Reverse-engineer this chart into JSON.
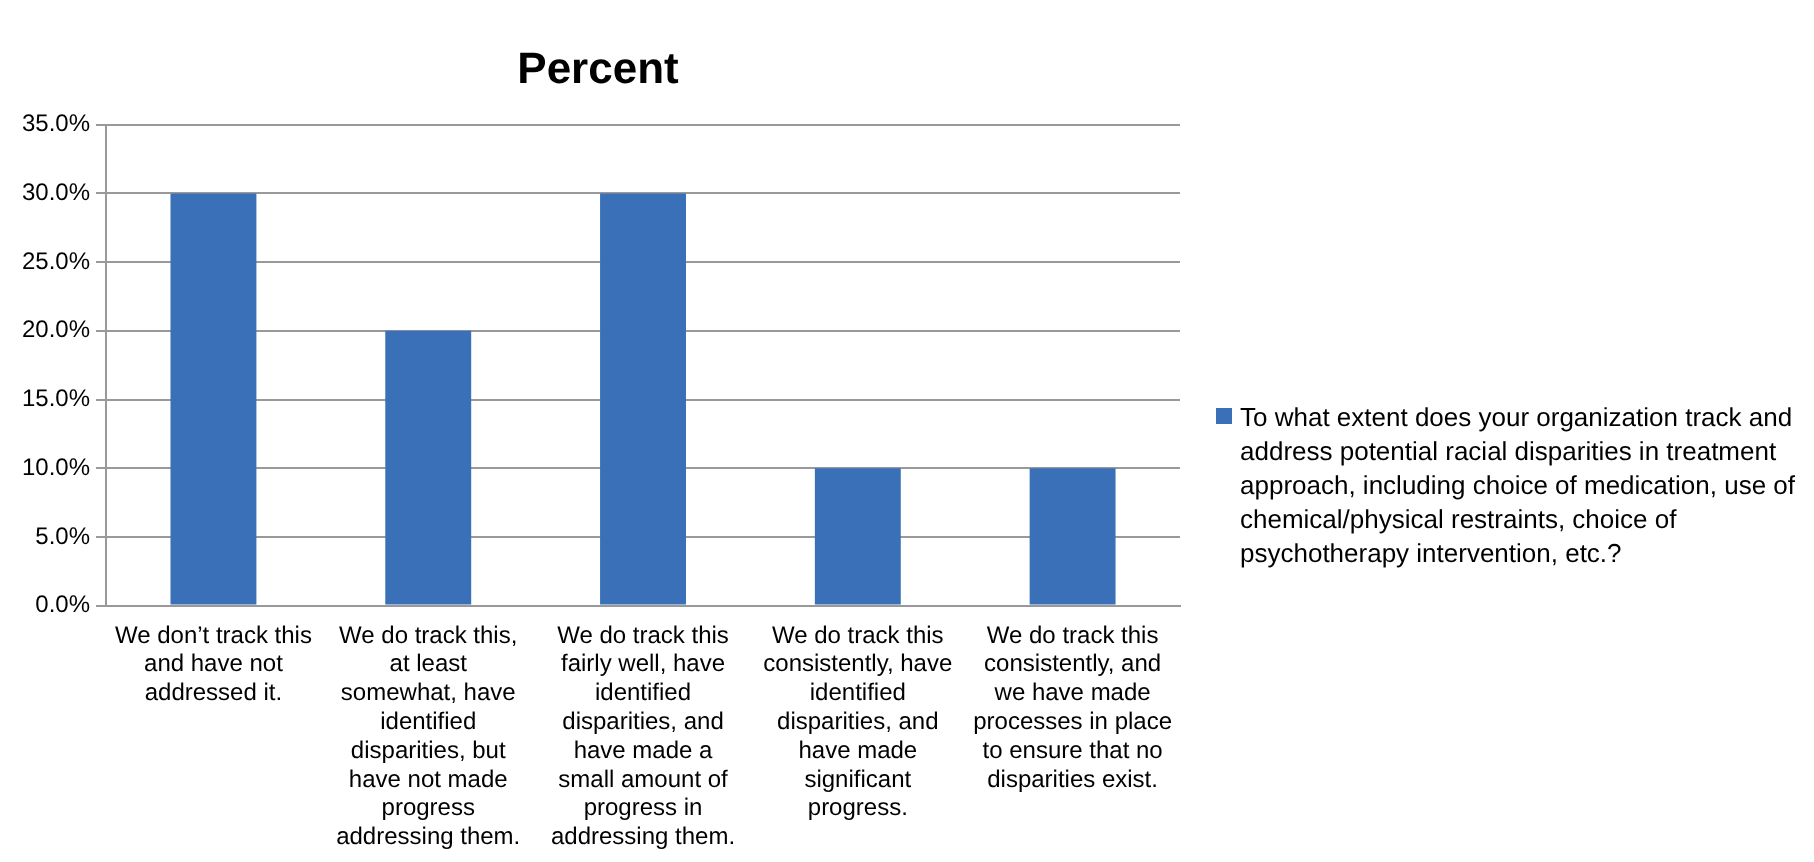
{
  "chart_data": {
    "type": "bar",
    "title": "Percent",
    "categories": [
      "We don’t track this and have not addressed it.",
      "We do track this, at least somewhat, have identified disparities, but have not made progress addressing them.",
      "We do track this fairly well, have identified disparities, and have made a small amount of progress in addressing them.",
      "We do track this consistently, have identified disparities, and have made significant progress.",
      "We do track this consistently, and we have made processes in place to ensure that no disparities exist."
    ],
    "series": [
      {
        "name": "To what extent does your organization track and address potential racial disparities in treatment approach, including choice of medication, use of chemical/physical restraints, choice of psychotherapy intervention, etc.?",
        "color": "#3a70b8",
        "values": [
          30,
          20,
          30,
          10,
          10
        ]
      }
    ],
    "ylim": [
      0,
      35
    ],
    "yticks": [
      {
        "value": 0,
        "label": "0.0%"
      },
      {
        "value": 5,
        "label": "5.0%"
      },
      {
        "value": 10,
        "label": "10.0%"
      },
      {
        "value": 15,
        "label": "15.0%"
      },
      {
        "value": 20,
        "label": "20.0%"
      },
      {
        "value": 25,
        "label": "25.0%"
      },
      {
        "value": 30,
        "label": "30.0%"
      },
      {
        "value": 35,
        "label": "35.0%"
      }
    ],
    "grid": "y",
    "legend": "right"
  }
}
